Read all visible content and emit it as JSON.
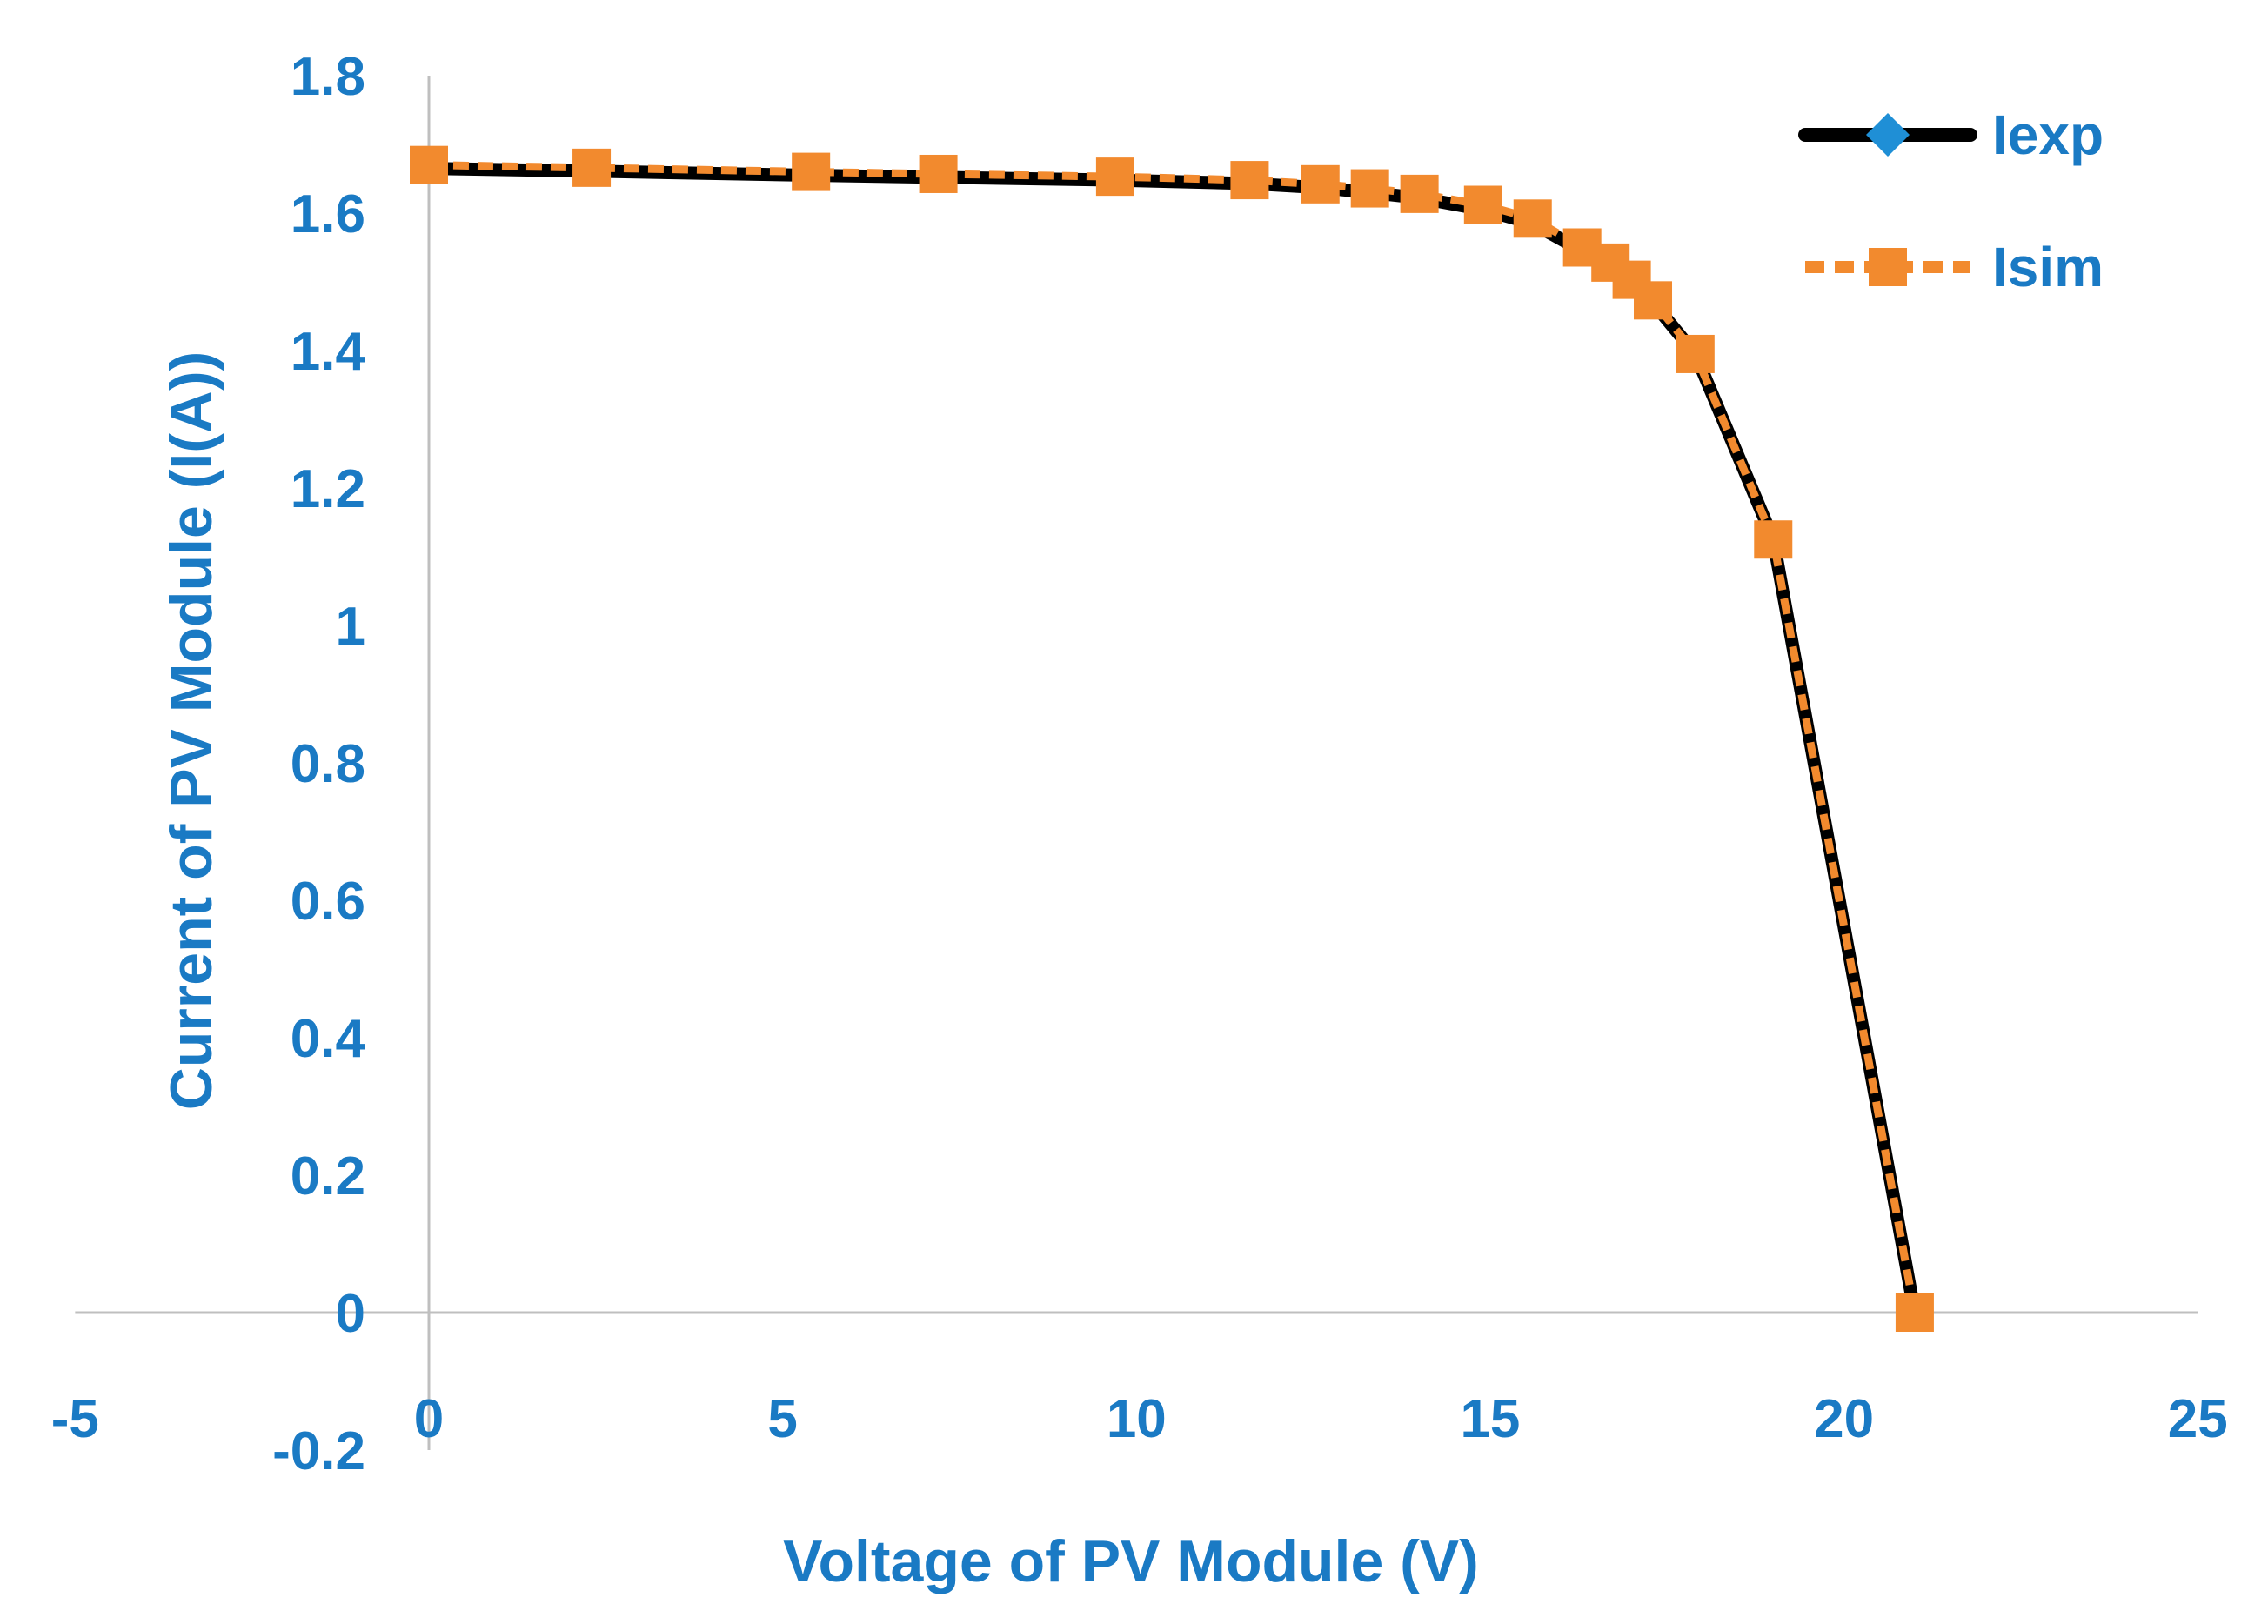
{
  "chart_data": {
    "type": "line",
    "title": "",
    "xlabel": "Voltage of PV Module (V)",
    "ylabel": "Current of PV Module (I(A))",
    "xlim": [
      -5,
      25
    ],
    "ylim": [
      -0.2,
      1.8
    ],
    "xticks": [
      "-5",
      "0",
      "5",
      "10",
      "15",
      "20",
      "25"
    ],
    "xtick_values": [
      -5,
      0,
      5,
      10,
      15,
      20,
      25
    ],
    "yticks": [
      "-0.2",
      "0",
      "0.2",
      "0.4",
      "0.6",
      "0.8",
      "1",
      "1.2",
      "1.4",
      "1.6",
      "1.8"
    ],
    "ytick_values": [
      -0.2,
      0,
      0.2,
      0.4,
      0.6,
      0.8,
      1.0,
      1.2,
      1.4,
      1.6,
      1.8
    ],
    "legend_position": "top-right",
    "series": [
      {
        "name": "Iexp",
        "color": "#000000",
        "marker_color": "#1f8fd6",
        "marker": "diamond",
        "line_style": "solid",
        "x": [
          0,
          2.3,
          5.4,
          7.2,
          9.7,
          11.6,
          12.6,
          13.3,
          14.0,
          14.9,
          15.6,
          16.3,
          16.7,
          17.0,
          17.3,
          17.9,
          19.0,
          21.0
        ],
        "values": [
          1.665,
          1.661,
          1.655,
          1.652,
          1.648,
          1.643,
          1.637,
          1.63,
          1.622,
          1.605,
          1.585,
          1.545,
          1.525,
          1.5,
          1.47,
          1.395,
          1.125,
          0.0
        ]
      },
      {
        "name": "Isim",
        "color": "#f28a2e",
        "marker_color": "#f28a2e",
        "marker": "square",
        "line_style": "dashed",
        "x": [
          0,
          2.3,
          5.4,
          7.2,
          9.7,
          11.6,
          12.6,
          13.3,
          14.0,
          14.9,
          15.6,
          16.3,
          16.7,
          17.0,
          17.3,
          17.9,
          19.0,
          21.0
        ],
        "values": [
          1.67,
          1.666,
          1.66,
          1.657,
          1.653,
          1.648,
          1.642,
          1.636,
          1.628,
          1.612,
          1.592,
          1.55,
          1.528,
          1.503,
          1.473,
          1.395,
          1.125,
          0.0
        ]
      }
    ]
  },
  "colors": {
    "text": "#1a7ac4",
    "axis": "#bfbfbf"
  }
}
